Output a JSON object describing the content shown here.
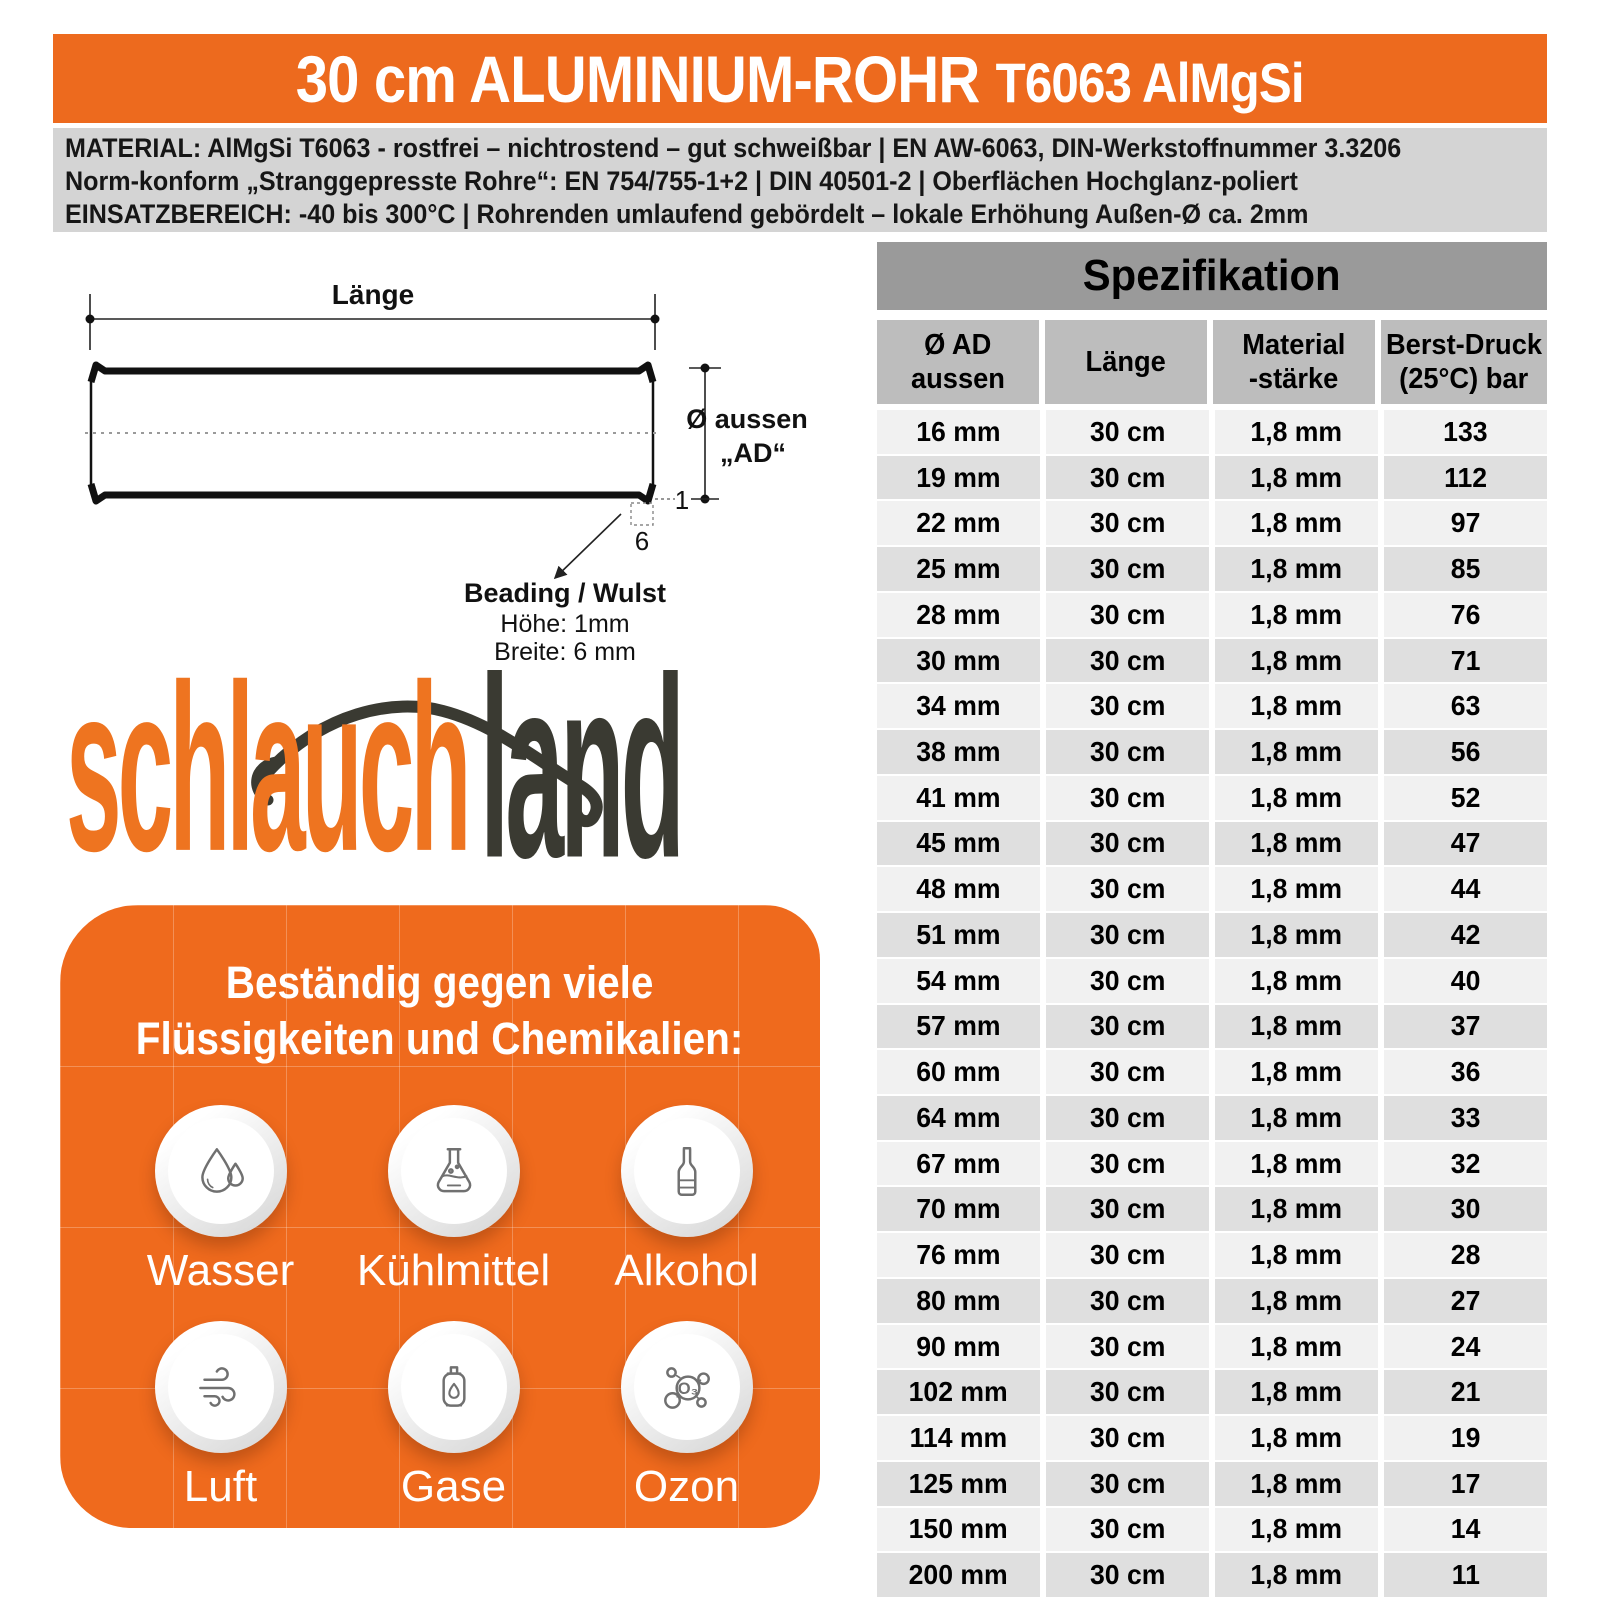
{
  "header": {
    "title_main": "30 cm ALUMINIUM-ROHR",
    "title_sub": "T6063 AlMgSi",
    "bg_color": "#ED6A1E",
    "text_color": "#FFFFFF"
  },
  "info_bar": {
    "bg_color": "#D4D4D4",
    "lines": [
      "MATERIAL: AlMgSi T6063 - rostfrei – nichtrostend – gut schweißbar | EN AW-6063, DIN-Werkstoffnummer 3.3206",
      "Norm-konform „Stranggepresste Rohre“: EN 754/755-1+2 | DIN 40501-2 | Oberflächen Hochglanz-poliert",
      "EINSATZBEREICH: -40 bis 300°C | Rohrenden umlaufend gebördelt – lokale Erhöhung Außen-Ø ca. 2mm"
    ]
  },
  "drawing": {
    "length_label": "Länge",
    "diameter_label_line1": "Ø aussen",
    "diameter_label_line2": "„AD“",
    "bead_height_dim": "1",
    "bead_width_dim": "6",
    "bead_title": "Beading / Wulst",
    "bead_line1": "Höhe: 1mm",
    "bead_line2": "Breite: 6 mm"
  },
  "logo": {
    "part1": "schlauch",
    "part2": "land",
    "orange": "#EE7420",
    "dark": "#3A3A32"
  },
  "resistance_box": {
    "bg_color": "#EF6A1D",
    "heading_line1": "Beständig gegen viele",
    "heading_line2": "Flüssigkeiten und Chemikalien:",
    "items": [
      {
        "label": "Wasser",
        "icon": "water-drops-icon"
      },
      {
        "label": "Kühlmittel",
        "icon": "flask-icon"
      },
      {
        "label": "Alkohol",
        "icon": "bottle-icon"
      },
      {
        "label": "Luft",
        "icon": "wind-icon"
      },
      {
        "label": "Gase",
        "icon": "gas-cylinder-icon"
      },
      {
        "label": "Ozon",
        "icon": "ozone-icon",
        "icon_text": "O₃"
      }
    ]
  },
  "spec_table": {
    "title": "Spezifikation",
    "title_bg": "#9A9A9A",
    "header_bg": "#BDBDBD",
    "row_light": "#F1F1F1",
    "row_dark": "#DFDFDF",
    "columns_lines": [
      [
        "Ø AD",
        "aussen"
      ],
      [
        "Länge",
        ""
      ],
      [
        "Material",
        "-stärke"
      ],
      [
        "Berst-Druck",
        "(25°C) bar"
      ]
    ],
    "rows": [
      [
        "16 mm",
        "30 cm",
        "1,8 mm",
        "133"
      ],
      [
        "19 mm",
        "30 cm",
        "1,8 mm",
        "112"
      ],
      [
        "22 mm",
        "30 cm",
        "1,8 mm",
        "97"
      ],
      [
        "25 mm",
        "30 cm",
        "1,8 mm",
        "85"
      ],
      [
        "28 mm",
        "30 cm",
        "1,8 mm",
        "76"
      ],
      [
        "30 mm",
        "30 cm",
        "1,8 mm",
        "71"
      ],
      [
        "34 mm",
        "30 cm",
        "1,8 mm",
        "63"
      ],
      [
        "38 mm",
        "30 cm",
        "1,8 mm",
        "56"
      ],
      [
        "41 mm",
        "30 cm",
        "1,8 mm",
        "52"
      ],
      [
        "45 mm",
        "30 cm",
        "1,8 mm",
        "47"
      ],
      [
        "48 mm",
        "30 cm",
        "1,8 mm",
        "44"
      ],
      [
        "51 mm",
        "30 cm",
        "1,8 mm",
        "42"
      ],
      [
        "54 mm",
        "30 cm",
        "1,8 mm",
        "40"
      ],
      [
        "57 mm",
        "30 cm",
        "1,8 mm",
        "37"
      ],
      [
        "60 mm",
        "30 cm",
        "1,8 mm",
        "36"
      ],
      [
        "64 mm",
        "30 cm",
        "1,8 mm",
        "33"
      ],
      [
        "67 mm",
        "30 cm",
        "1,8 mm",
        "32"
      ],
      [
        "70 mm",
        "30 cm",
        "1,8 mm",
        "30"
      ],
      [
        "76 mm",
        "30 cm",
        "1,8 mm",
        "28"
      ],
      [
        "80 mm",
        "30 cm",
        "1,8 mm",
        "27"
      ],
      [
        "90 mm",
        "30 cm",
        "1,8 mm",
        "24"
      ],
      [
        "102 mm",
        "30 cm",
        "1,8 mm",
        "21"
      ],
      [
        "114 mm",
        "30 cm",
        "1,8 mm",
        "19"
      ],
      [
        "125 mm",
        "30 cm",
        "1,8 mm",
        "17"
      ],
      [
        "150 mm",
        "30 cm",
        "1,8 mm",
        "14"
      ],
      [
        "200 mm",
        "30 cm",
        "1,8 mm",
        "11"
      ]
    ]
  }
}
